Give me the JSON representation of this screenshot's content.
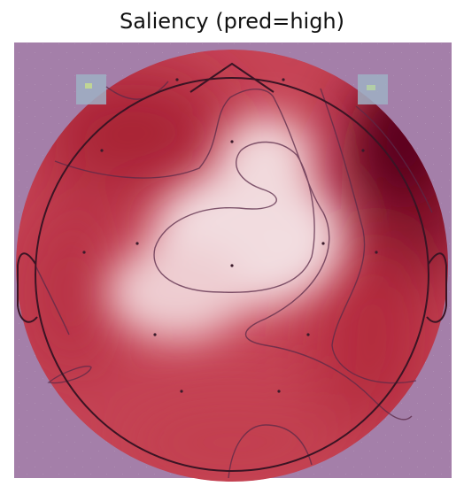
{
  "figure": {
    "title": "Saliency (pred=high)"
  },
  "colors": {
    "background_overlay": "#a47fa9",
    "head_outline": "#3a1424",
    "contour_line": "#5a2a48",
    "saliency_high": "#6b0422",
    "saliency_mid": "#c64456",
    "saliency_low": "#f2dde0",
    "sensor_dot": "#3a1a2a"
  },
  "map": {
    "type": "topographic-saliency",
    "colormap": "white-to-red",
    "sensors_shown": true
  }
}
